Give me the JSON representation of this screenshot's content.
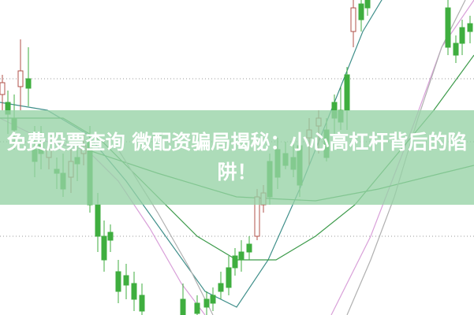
{
  "article": {
    "title": "免费股票查询 微配资骗局揭秘：小心高杠杆背后的陷阱！"
  },
  "image": {
    "subject": "stock-candlestick-chart",
    "colors": {
      "rising_candle": "#b0504a",
      "falling_candle": "#3fae3f",
      "banner": "#96d2a5",
      "ma_teal": "#3f8f8a",
      "ma_pink": "#d9a0d9",
      "ma_green": "#3c9a4a",
      "ma_gray": "#b0b0b0"
    }
  }
}
